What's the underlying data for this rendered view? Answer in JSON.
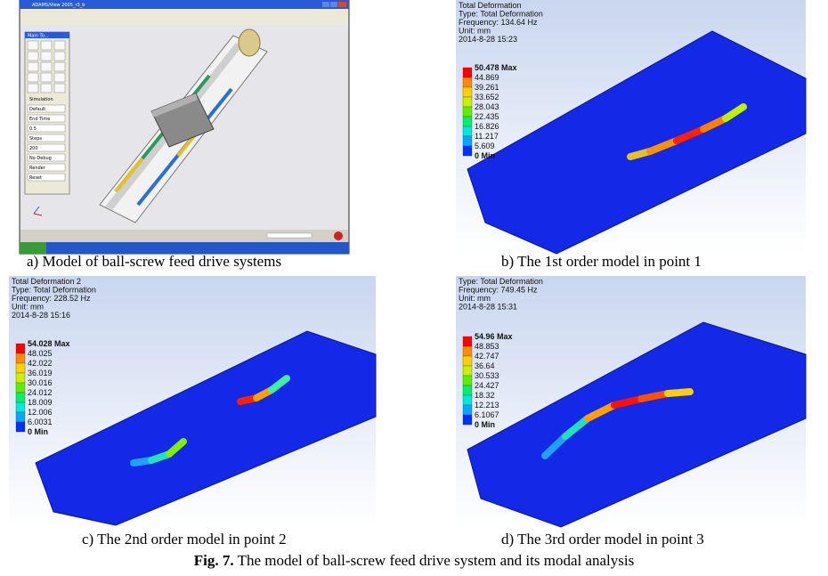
{
  "panel_a": {
    "window_title": "ADAMS/View 2005_r3_b",
    "toolbox_title": "Main To...",
    "fields": [
      "Simulation",
      "Default",
      "End Time",
      "0.5",
      "Steps",
      "200",
      "No Debug",
      "Render",
      "Reset"
    ]
  },
  "panels": [
    {
      "lines": [
        "Total Deformation",
        "Type: Total Deformation",
        "Frequency: 134.64 Hz",
        "Unit: mm",
        "2014-8-28 15:23"
      ],
      "legend": [
        "50.478 Max",
        "44.869",
        "39.261",
        "33.652",
        "28.043",
        "22.435",
        "16.826",
        "11.217",
        "5.609",
        "0 Min"
      ]
    },
    {
      "lines": [
        "Total Deformation 2",
        "Type: Total Deformation",
        "Frequency: 228.52 Hz",
        "Unit: mm",
        "2014-8-28 15:16"
      ],
      "legend": [
        "54.028 Max",
        "48.025",
        "42.022",
        "36.019",
        "30.016",
        "24.012",
        "18.009",
        "12.006",
        "6.0031",
        "0 Min"
      ]
    },
    {
      "lines": [
        "Type: Total Deformation",
        "Frequency: 749.45 Hz",
        "Unit: mm",
        "2014-8-28 15:31"
      ],
      "legend": [
        "54.96 Max",
        "48.853",
        "42.747",
        "36.64",
        "30.533",
        "24.427",
        "18.32",
        "12.213",
        "6.1067",
        "0 Min"
      ]
    }
  ],
  "captions": [
    "a) Model of ball-screw feed drive systems",
    "b) The 1st order model in point 1",
    "c) The 2nd order model in point 2",
    "d) The 3rd order model in point 3"
  ],
  "figure_caption": {
    "label": "Fig. 7.",
    "text": "The model of ball-screw feed drive system and its modal analysis"
  }
}
